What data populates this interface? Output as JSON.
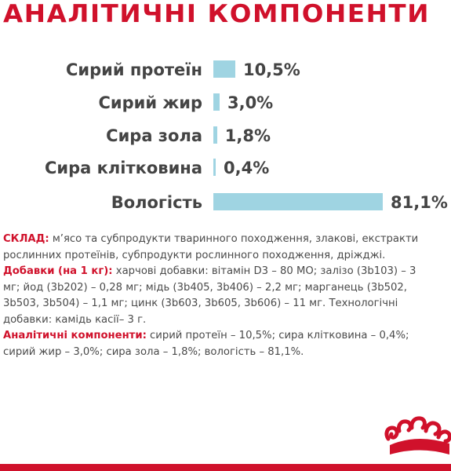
{
  "title": "АНАЛІТИЧНІ КОМПОНЕНТИ",
  "components": [
    {
      "label": "Сирий протеїн",
      "value": "10,5%",
      "percent": 10.5
    },
    {
      "label": "Сирий жир",
      "value": "3,0%",
      "percent": 3.0
    },
    {
      "label": "Сира зола",
      "value": "1,8%",
      "percent": 1.8
    },
    {
      "label": "Сира клітковина",
      "value": "0,4%",
      "percent": 0.4
    },
    {
      "label": "Вологість",
      "value": "81,1%",
      "percent": 81.1
    }
  ],
  "composition": {
    "label": "СКЛАД:",
    "text": " м’ясо та субпродукти тваринного походження, злакові, екстракти рослинних протеїнів, субпродукти рослинного походження, дріжджі."
  },
  "additives": {
    "label": "Добавки (на 1 кг):",
    "text": " харчові добавки: вітамін D3 – 80 МО; залізо (3b103) – 3 мг; йод (3b202) – 0,28 мг; мідь (3b405, 3b406) – 2,2 мг; марганець (3b502, 3b503, 3b504) – 1,1 мг; цинк (3b603, 3b605, 3b606) – 11 мг. Технологічні добавки: камідь касії– 3 г."
  },
  "analytical": {
    "label": "Аналітичні компоненти:",
    "text": " сирий протеїн – 10,5%; сира клітковина – 0,4%; сирий жир – 3,0%; сира зола – 1,8%; вологість – 81,1%."
  },
  "colors": {
    "accent": "#d0112b",
    "bar": "#9fd4e2",
    "text": "#444444"
  },
  "logo_icon": "crown-logo-icon"
}
